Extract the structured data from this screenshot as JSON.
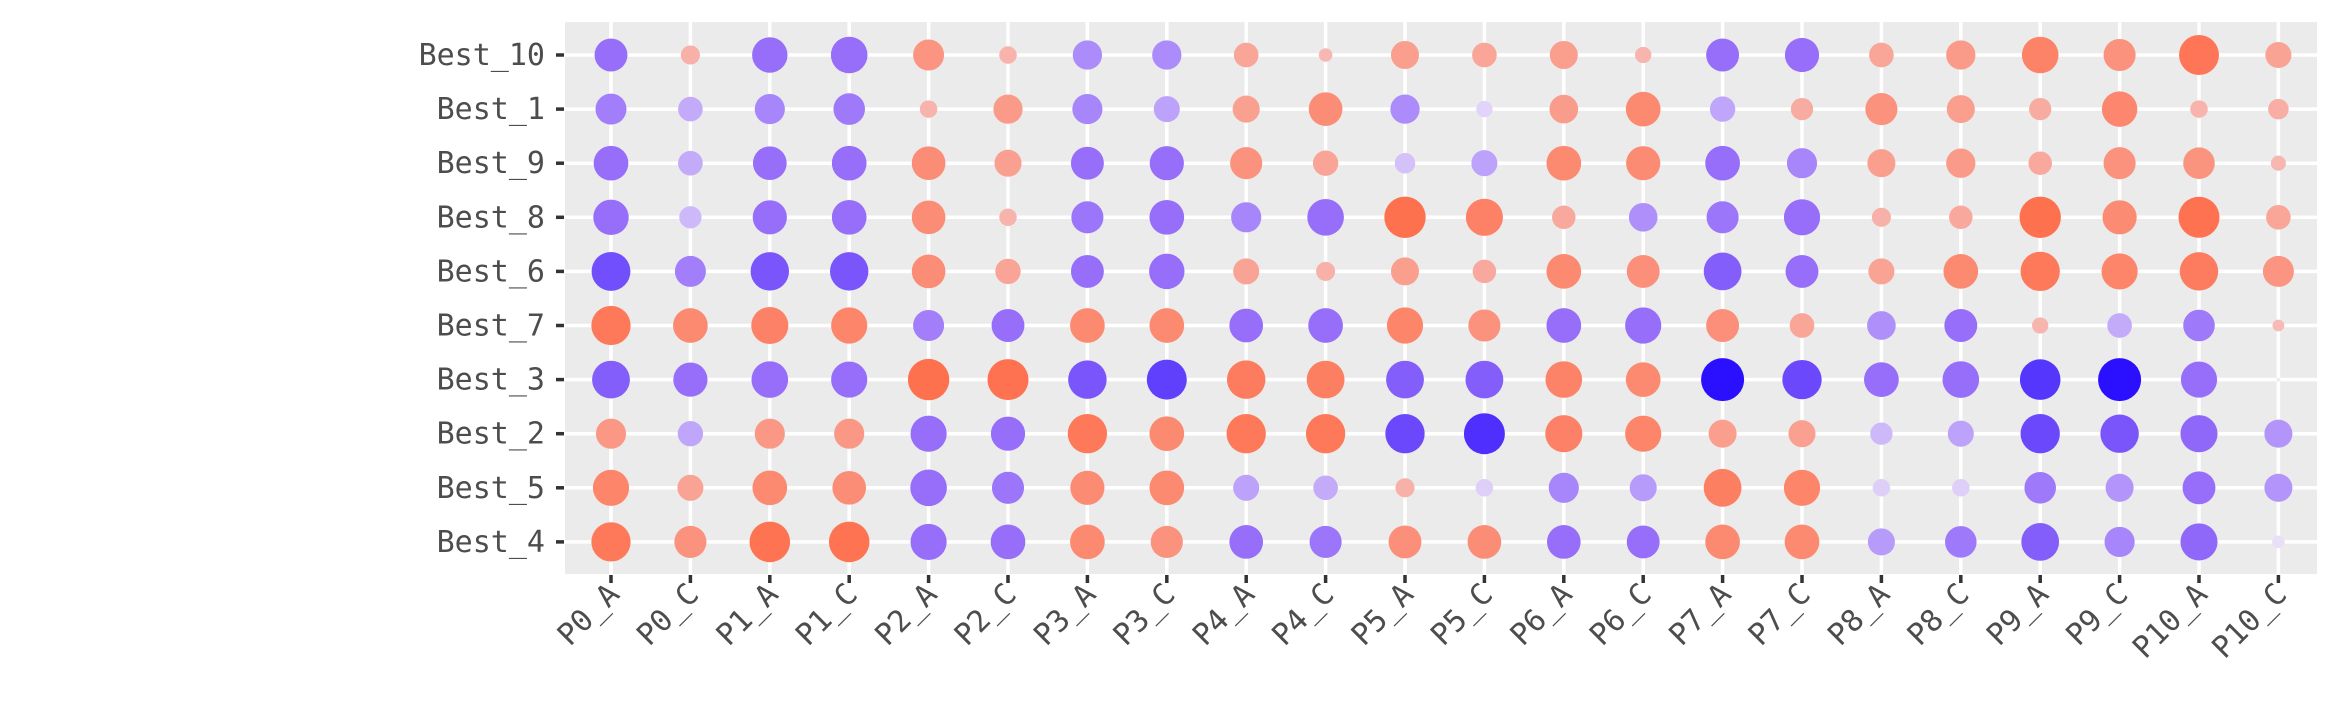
{
  "chart_data": {
    "type": "scatter",
    "subtype": "dot-matrix",
    "title": "",
    "xlabel": "",
    "ylabel": "",
    "grid": true,
    "legend": "none",
    "panel_color": "#ebebeb",
    "color_scale": {
      "low": "#ff6a45",
      "mid": "#f2eaf9",
      "high": "#2a10ff"
    },
    "x_categories": [
      "P0_A",
      "P0_C",
      "P1_A",
      "P1_C",
      "P2_A",
      "P2_C",
      "P3_A",
      "P3_C",
      "P4_A",
      "P4_C",
      "P5_A",
      "P5_C",
      "P6_A",
      "P6_C",
      "P7_A",
      "P7_C",
      "P8_A",
      "P8_C",
      "P9_A",
      "P9_C",
      "P10_A",
      "P10_C"
    ],
    "y_categories": [
      "Best_10",
      "Best_1",
      "Best_9",
      "Best_8",
      "Best_6",
      "Best_7",
      "Best_3",
      "Best_2",
      "Best_5",
      "Best_4"
    ],
    "value_note": "each dot encodes a value: sign by colour (positive = purple/blue, negative = orange), magnitude by size and saturation",
    "values": [
      [
        0.55,
        -0.15,
        0.65,
        0.7,
        -0.48,
        -0.12,
        0.42,
        0.42,
        -0.28,
        -0.06,
        -0.38,
        -0.28,
        -0.38,
        -0.1,
        0.55,
        0.6,
        -0.28,
        -0.42,
        -0.7,
        -0.52,
        -0.85,
        -0.32
      ],
      [
        0.48,
        0.28,
        0.45,
        0.5,
        -0.12,
        -0.42,
        0.45,
        0.32,
        -0.35,
        -0.58,
        0.42,
        0.1,
        -0.4,
        -0.62,
        0.3,
        -0.22,
        -0.52,
        -0.38,
        -0.22,
        -0.65,
        -0.12,
        -0.18
      ],
      [
        0.62,
        0.28,
        0.58,
        0.62,
        -0.58,
        -0.35,
        0.55,
        0.6,
        -0.52,
        -0.3,
        0.18,
        0.32,
        -0.62,
        -0.6,
        0.62,
        0.45,
        -0.38,
        -0.42,
        -0.25,
        -0.52,
        -0.5,
        -0.08
      ],
      [
        0.65,
        0.22,
        0.6,
        0.62,
        -0.58,
        -0.12,
        0.52,
        0.62,
        0.45,
        0.7,
        -0.92,
        -0.72,
        -0.25,
        0.4,
        0.52,
        0.68,
        -0.15,
        -0.25,
        -0.92,
        -0.6,
        -0.9,
        -0.28
      ],
      [
        0.8,
        0.48,
        0.78,
        0.78,
        -0.58,
        -0.3,
        0.55,
        0.65,
        -0.32,
        -0.15,
        -0.38,
        -0.25,
        -0.62,
        -0.55,
        0.75,
        0.55,
        -0.32,
        -0.62,
        -0.82,
        -0.68,
        -0.78,
        -0.48
      ],
      [
        -0.82,
        -0.62,
        -0.72,
        -0.68,
        0.48,
        0.55,
        -0.62,
        -0.62,
        0.58,
        0.62,
        -0.68,
        -0.52,
        0.62,
        0.68,
        -0.55,
        -0.28,
        0.4,
        0.55,
        -0.1,
        0.28,
        0.5,
        -0.04
      ],
      [
        0.75,
        0.6,
        0.7,
        0.68,
        -0.92,
        -0.9,
        0.78,
        0.85,
        -0.78,
        -0.75,
        0.75,
        0.75,
        -0.7,
        -0.62,
        1.0,
        0.82,
        0.62,
        0.7,
        0.88,
        1.0,
        0.68,
        0.0
      ],
      [
        -0.45,
        0.3,
        -0.45,
        -0.45,
        0.68,
        0.6,
        -0.82,
        -0.62,
        -0.82,
        -0.82,
        0.82,
        0.9,
        -0.72,
        -0.68,
        -0.38,
        -0.35,
        0.22,
        0.32,
        0.82,
        0.78,
        0.72,
        0.38
      ],
      [
        -0.68,
        -0.32,
        -0.62,
        -0.58,
        0.7,
        0.52,
        -0.6,
        -0.62,
        0.32,
        0.28,
        -0.15,
        0.12,
        0.45,
        0.35,
        -0.75,
        -0.68,
        0.12,
        0.12,
        0.5,
        0.38,
        0.55,
        0.38
      ],
      [
        -0.82,
        -0.52,
        -0.88,
        -0.88,
        0.68,
        0.62,
        -0.62,
        -0.52,
        0.58,
        0.52,
        -0.55,
        -0.58,
        0.58,
        0.55,
        -0.62,
        -0.62,
        0.35,
        0.5,
        0.75,
        0.45,
        0.72,
        0.05
      ]
    ]
  }
}
